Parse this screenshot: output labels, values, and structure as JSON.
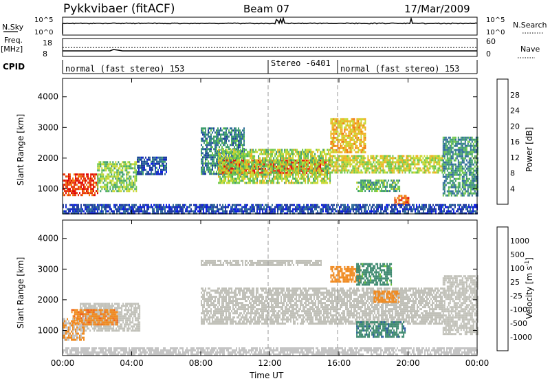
{
  "header": {
    "station": "Pykkvibaer (fitACF)",
    "beam": "Beam 07",
    "date": "17/Mar/2009"
  },
  "top_panels": {
    "nsky_label": "N.Sky",
    "nsearch_label": "N.Search",
    "noise_ticks": [
      "10^5",
      "10^0"
    ],
    "freq_label": "Freq.",
    "freq_unit": "[MHz]",
    "freq_ticks": [
      "18",
      "8"
    ],
    "nave_label": "Nave",
    "nave_ticks": [
      "60",
      "0"
    ],
    "cpid_label": "CPID",
    "cpid_segments": [
      {
        "label": "normal (fast stereo) 153",
        "start_h": 0,
        "end_h": 12
      },
      {
        "label": "Stereo -6401",
        "start_h": 12,
        "end_h": 16
      },
      {
        "label": "normal (fast stereo) 153",
        "start_h": 16,
        "end_h": 24
      }
    ]
  },
  "colors": {
    "power_scale": [
      "#0a1ae6",
      "#1e3a9e",
      "#2e6b9a",
      "#3f9e6e",
      "#6ec84a",
      "#c9d830",
      "#f0b020",
      "#f07a10",
      "#e83a10",
      "#e00808"
    ],
    "velocity_scale": [
      "#1838b0",
      "#2c5c9c",
      "#3f8a70",
      "#69c03a",
      "#c4c4c4",
      "#c4c4c4",
      "#f08a20",
      "#f0621a",
      "#e83a10",
      "#dd0000"
    ],
    "ground_scatter": "#c0c0b8"
  },
  "chart_data": [
    {
      "type": "heatmap",
      "name": "power",
      "xlabel": "",
      "ylabel": "Slant Range [km]",
      "xlim": [
        0,
        24
      ],
      "ylim": [
        180,
        4600
      ],
      "yticks": [
        "1000",
        "2000",
        "3000",
        "4000"
      ],
      "colorbar_label": "Power [dB]",
      "colorbar_ticks": [
        "4",
        "8",
        "12",
        "16",
        "20",
        "24",
        "28"
      ],
      "colorbar_range": [
        0,
        30
      ],
      "regions": [
        {
          "t0": 0.0,
          "t1": 2.0,
          "r0": 800,
          "r1": 1500,
          "v": 26
        },
        {
          "t0": 2.0,
          "t1": 4.3,
          "r0": 950,
          "r1": 1900,
          "v": 14
        },
        {
          "t0": 4.3,
          "t1": 6.0,
          "r0": 1500,
          "r1": 2050,
          "v": 6
        },
        {
          "t0": 8.0,
          "t1": 10.5,
          "r0": 1500,
          "r1": 3000,
          "v": 9
        },
        {
          "t0": 9.0,
          "t1": 15.5,
          "r0": 1500,
          "r1": 1950,
          "v": 27
        },
        {
          "t0": 9.0,
          "t1": 15.5,
          "r0": 1200,
          "r1": 2300,
          "v": 15
        },
        {
          "t0": 15.5,
          "t1": 22.0,
          "r0": 1500,
          "r1": 2100,
          "v": 16
        },
        {
          "t0": 15.5,
          "t1": 17.5,
          "r0": 2200,
          "r1": 3300,
          "v": 19
        },
        {
          "t0": 17.0,
          "t1": 19.5,
          "r0": 900,
          "r1": 1300,
          "v": 12
        },
        {
          "t0": 19.2,
          "t1": 20.0,
          "r0": 500,
          "r1": 800,
          "v": 24
        },
        {
          "t0": 22.0,
          "t1": 24.0,
          "r0": 800,
          "r1": 2700,
          "v": 10
        },
        {
          "t0": 0.0,
          "t1": 24.0,
          "r0": 200,
          "r1": 500,
          "v": 5
        }
      ]
    },
    {
      "type": "heatmap",
      "name": "velocity",
      "xlabel": "Time UT",
      "ylabel": "Slant Range [km]",
      "xlim": [
        0,
        24
      ],
      "ylim": [
        180,
        4600
      ],
      "xticks": [
        "00:00",
        "04:00",
        "08:00",
        "12:00",
        "16:00",
        "20:00",
        "00:00"
      ],
      "yticks": [
        "1000",
        "2000",
        "3000",
        "4000"
      ],
      "colorbar_label": "Velocity [m s",
      "colorbar_unit_sup": "-1",
      "colorbar_ticks": [
        "1000",
        "500",
        "100",
        "25",
        "-25",
        "-100",
        "-500",
        "-1000"
      ],
      "regions": [
        {
          "t0": 1.0,
          "t1": 4.5,
          "r0": 1000,
          "r1": 1900,
          "v": 0,
          "ground": true
        },
        {
          "t0": 0.5,
          "t1": 3.2,
          "r0": 1200,
          "r1": 1700,
          "v": -400
        },
        {
          "t0": 0.0,
          "t1": 1.2,
          "r0": 700,
          "r1": 1400,
          "v": -100
        },
        {
          "t0": 8.0,
          "t1": 22.0,
          "r0": 1200,
          "r1": 2400,
          "v": 0,
          "ground": true
        },
        {
          "t0": 8.0,
          "t1": 15.0,
          "r0": 3100,
          "r1": 3300,
          "v": 0,
          "ground": true
        },
        {
          "t0": 15.5,
          "t1": 17.2,
          "r0": 2600,
          "r1": 3100,
          "v": -200
        },
        {
          "t0": 17.0,
          "t1": 19.0,
          "r0": 2500,
          "r1": 3200,
          "v": 150
        },
        {
          "t0": 17.0,
          "t1": 19.8,
          "r0": 800,
          "r1": 1300,
          "v": 400
        },
        {
          "t0": 18.0,
          "t1": 19.5,
          "r0": 1900,
          "r1": 2300,
          "v": -150
        },
        {
          "t0": 22.0,
          "t1": 24.0,
          "r0": 900,
          "r1": 2800,
          "v": 0,
          "ground": true
        },
        {
          "t0": 0.0,
          "t1": 24.0,
          "r0": 200,
          "r1": 450,
          "v": -40
        }
      ]
    }
  ]
}
